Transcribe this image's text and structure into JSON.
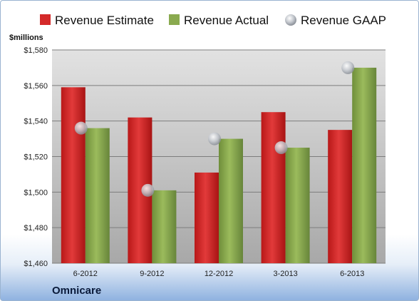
{
  "chart_data": {
    "type": "bar",
    "unit_label": "$millions",
    "footer": "Omnicare",
    "categories": [
      "6-2012",
      "9-2012",
      "12-2012",
      "3-2013",
      "6-2013"
    ],
    "series": [
      {
        "name": "Revenue Estimate",
        "type": "bar",
        "color": "#d42a2a",
        "values": [
          1559,
          1542,
          1511,
          1545,
          1535
        ]
      },
      {
        "name": "Revenue Actual",
        "type": "bar",
        "color": "#8aaa4f",
        "values": [
          1536,
          1501,
          1530,
          1525,
          1570
        ]
      },
      {
        "name": "Revenue GAAP",
        "type": "scatter",
        "color": "#c8ccd4",
        "values": [
          1536,
          1501,
          1530,
          1525,
          1570
        ]
      }
    ],
    "ylim": [
      1460,
      1580
    ],
    "yticks": [
      "$1,460",
      "$1,480",
      "$1,500",
      "$1,520",
      "$1,540",
      "$1,560",
      "$1,580"
    ],
    "grid": true,
    "legend_position": "top"
  }
}
